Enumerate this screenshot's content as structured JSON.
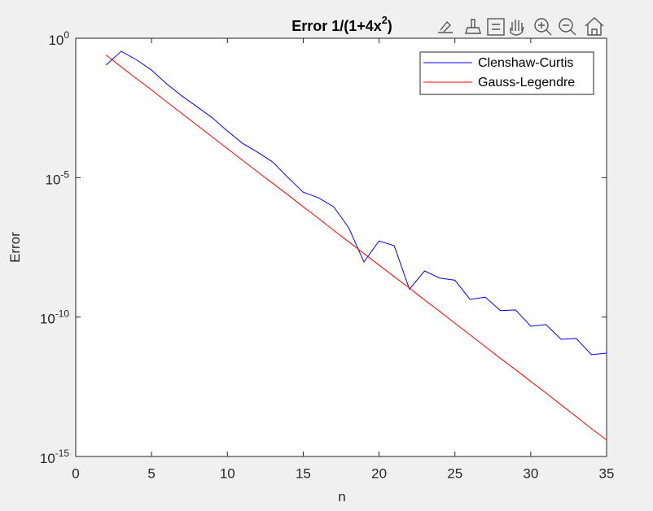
{
  "chart_data": {
    "type": "line",
    "title": "Error 1/(1+4x^{2})",
    "xlabel": "n",
    "ylabel": "Error",
    "x": [
      2,
      3,
      4,
      5,
      6,
      7,
      8,
      9,
      10,
      11,
      12,
      13,
      14,
      15,
      16,
      17,
      18,
      19,
      20,
      21,
      22,
      23,
      24,
      25,
      26,
      27,
      28,
      29,
      30,
      31,
      32,
      33,
      34,
      35
    ],
    "series": [
      {
        "name": "Clenshaw-Curtis",
        "color": "#0000ff",
        "values": [
          0.11,
          0.34,
          0.17,
          0.072,
          0.023,
          0.0085,
          0.0035,
          0.0014,
          0.00047,
          0.00017,
          8.1e-05,
          3.6e-05,
          1e-05,
          3e-06,
          1.9e-06,
          9.1e-07,
          1.6e-07,
          9.5e-09,
          5.4e-08,
          3.6e-08,
          1e-09,
          4.5e-09,
          2.5e-09,
          2.1e-09,
          4.3e-10,
          5.2e-10,
          1.7e-10,
          1.8e-10,
          4.7e-11,
          5.4e-11,
          1.6e-11,
          1.7e-11,
          4.5e-12,
          5.1e-12
        ]
      },
      {
        "name": "Gauss-Legendre",
        "color": "#ff0000",
        "values": [
          0.25,
          0.094,
          0.036,
          0.014,
          0.0052,
          0.002,
          0.00076,
          0.00029,
          0.00011,
          4.2e-05,
          1.6e-05,
          6.2e-06,
          2.4e-06,
          9e-07,
          3.5e-07,
          1.3e-07,
          5e-08,
          1.9e-08,
          7.3e-09,
          2.8e-09,
          1.1e-09,
          4.1e-10,
          1.6e-10,
          6e-11,
          2.3e-11,
          8.7e-12,
          3.3e-12,
          1.3e-12,
          4.9e-13,
          1.9e-13,
          7.1e-14,
          2.7e-14,
          1e-14,
          3.9e-15
        ]
      }
    ],
    "xlim": [
      0,
      35
    ],
    "xticks": [
      0,
      5,
      10,
      15,
      20,
      25,
      30,
      35
    ],
    "ylim": [
      1e-15,
      1
    ],
    "yscale": "log",
    "yticks": [
      {
        "value": 1e-15,
        "label": "10^{-15}"
      },
      {
        "value": 1e-10,
        "label": "10^{-10}"
      },
      {
        "value": 1e-05,
        "label": "10^{-5}"
      },
      {
        "value": 1,
        "label": "10^{0}"
      }
    ],
    "legend": "northeast"
  }
}
